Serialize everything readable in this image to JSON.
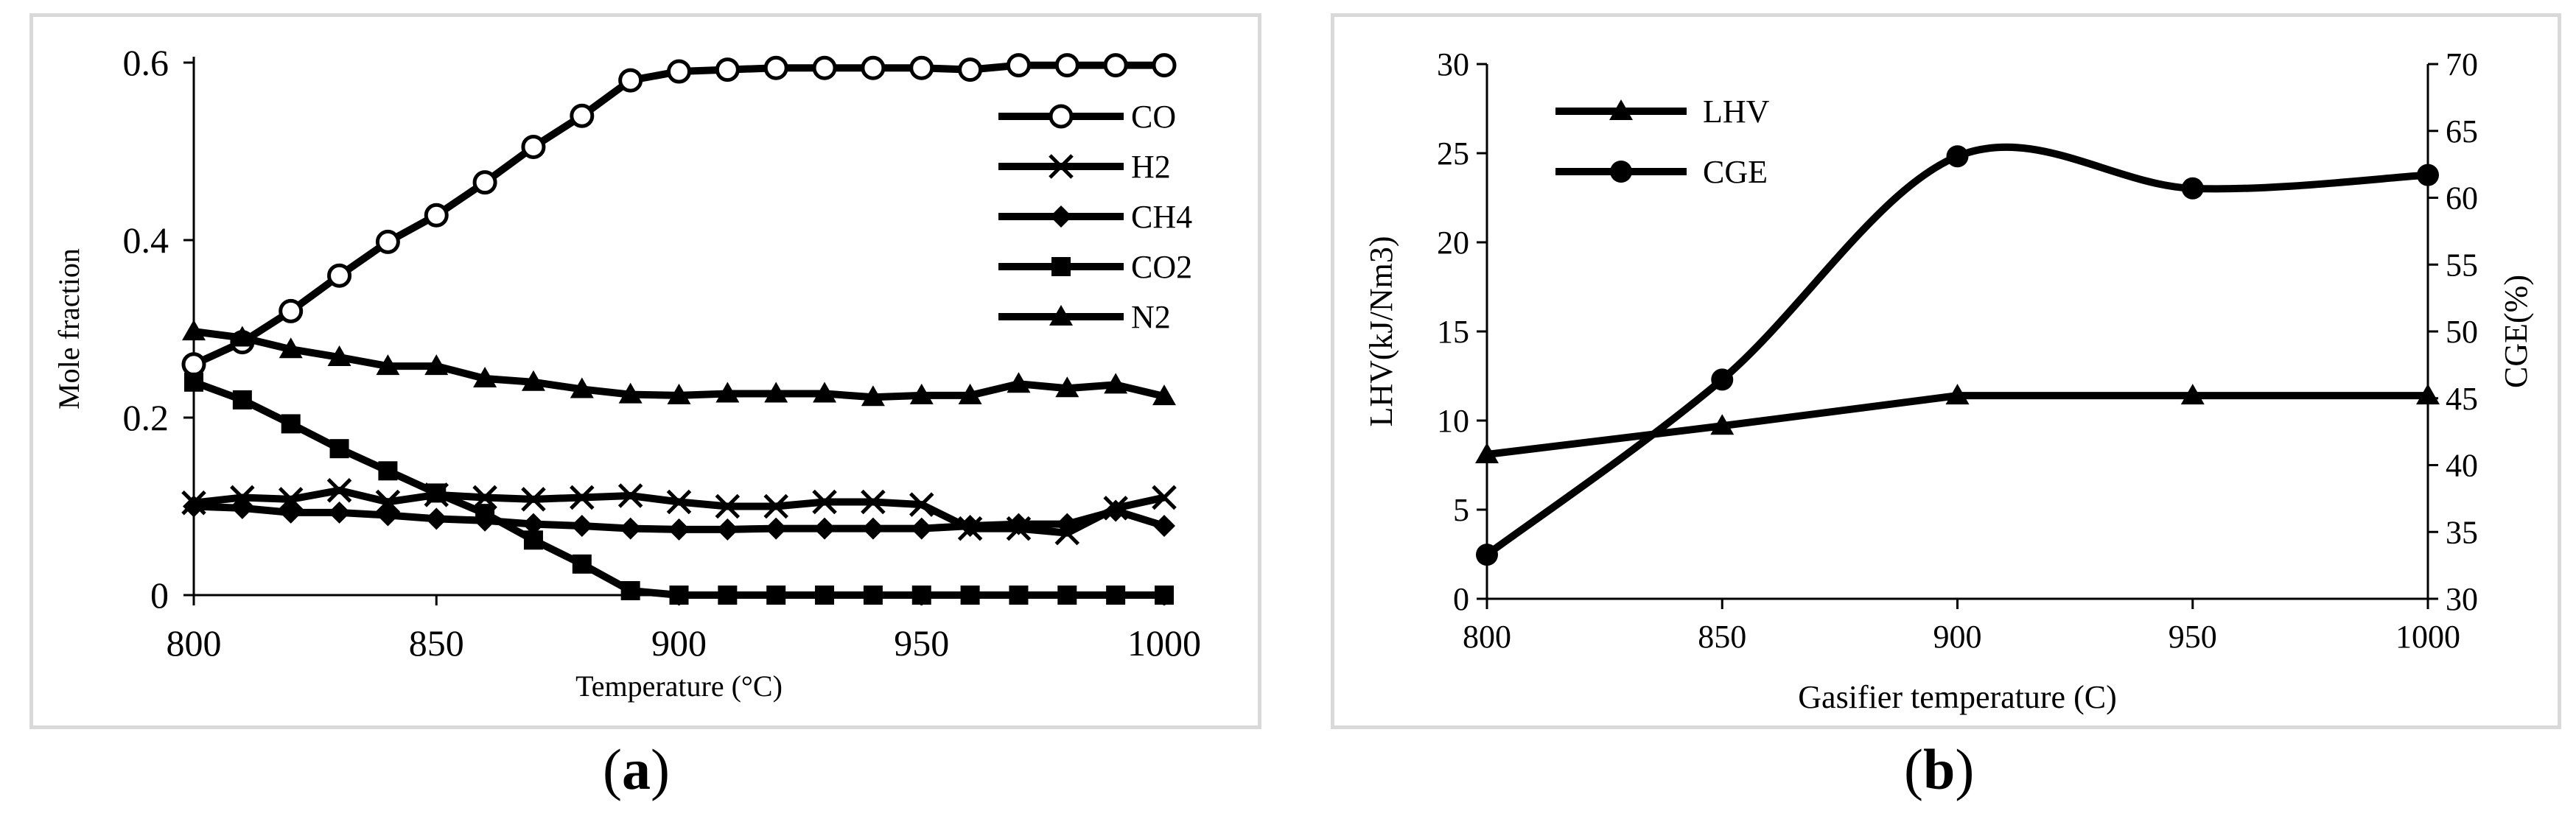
{
  "chart_data": [
    {
      "panel_label": "a",
      "type": "line",
      "title": "",
      "xlabel": "Temperature (°C)",
      "ylabel": "Mole fraction",
      "xlim": [
        800,
        1000
      ],
      "ylim": [
        0,
        0.6
      ],
      "xticks": [
        "800",
        "850",
        "900",
        "950",
        "1000"
      ],
      "yticks": [
        "0",
        "0.2",
        "0.4",
        "0.6"
      ],
      "x": [
        800,
        810,
        820,
        830,
        840,
        850,
        860,
        870,
        880,
        890,
        900,
        910,
        920,
        930,
        940,
        950,
        960,
        970,
        980,
        990,
        1000
      ],
      "series": [
        {
          "name": "CO",
          "marker": "open-circle",
          "values": [
            0.26,
            0.285,
            0.32,
            0.36,
            0.398,
            0.428,
            0.465,
            0.505,
            0.54,
            0.58,
            0.59,
            0.592,
            0.594,
            0.594,
            0.594,
            0.594,
            0.592,
            0.597,
            0.597,
            0.597,
            0.597
          ]
        },
        {
          "name": "H2",
          "marker": "x",
          "values": [
            0.104,
            0.11,
            0.108,
            0.118,
            0.105,
            0.113,
            0.11,
            0.108,
            0.11,
            0.112,
            0.105,
            0.1,
            0.1,
            0.105,
            0.105,
            0.102,
            0.075,
            0.075,
            0.07,
            0.098,
            0.11
          ]
        },
        {
          "name": "CH4",
          "marker": "diamond",
          "values": [
            0.1,
            0.098,
            0.093,
            0.093,
            0.09,
            0.086,
            0.084,
            0.08,
            0.078,
            0.075,
            0.074,
            0.074,
            0.075,
            0.075,
            0.075,
            0.075,
            0.078,
            0.08,
            0.08,
            0.095,
            0.078
          ]
        },
        {
          "name": "CO2",
          "marker": "square",
          "values": [
            0.24,
            0.22,
            0.193,
            0.165,
            0.14,
            0.115,
            0.092,
            0.062,
            0.035,
            0.005,
            0,
            0,
            0,
            0,
            0,
            0,
            0,
            0,
            0,
            0,
            0
          ]
        },
        {
          "name": "N2",
          "marker": "triangle",
          "values": [
            0.297,
            0.29,
            0.277,
            0.268,
            0.258,
            0.258,
            0.244,
            0.24,
            0.232,
            0.226,
            0.225,
            0.227,
            0.227,
            0.227,
            0.223,
            0.225,
            0.225,
            0.238,
            0.233,
            0.237,
            0.224
          ]
        }
      ],
      "legend_position": "top-right",
      "grid": false
    },
    {
      "panel_label": "b",
      "type": "line",
      "title": "",
      "xlabel": "Gasifier temperature (C)",
      "ylabel": "LHV(kJ/Nm3)",
      "y2label": "CGE(%)",
      "xlim": [
        800,
        1000
      ],
      "ylim": [
        0,
        30
      ],
      "y2lim": [
        30,
        70
      ],
      "xticks": [
        "800",
        "850",
        "900",
        "950",
        "1000"
      ],
      "yticks": [
        "0",
        "5",
        "10",
        "15",
        "20",
        "25",
        "30"
      ],
      "y2ticks": [
        "30",
        "35",
        "40",
        "45",
        "50",
        "55",
        "60",
        "65",
        "70"
      ],
      "x": [
        800,
        850,
        900,
        950,
        1000
      ],
      "series": [
        {
          "name": "LHV",
          "axis": "left",
          "marker": "triangle",
          "smooth": false,
          "values": [
            8.1,
            9.7,
            11.4,
            11.4,
            11.4
          ]
        },
        {
          "name": "CGE",
          "axis": "right",
          "marker": "filled-circle",
          "smooth": true,
          "values": [
            33.3,
            46.4,
            63.1,
            60.7,
            61.7
          ]
        }
      ],
      "legend_position": "top-left",
      "grid": false
    }
  ],
  "labels": {
    "a": "a",
    "b": "b"
  }
}
